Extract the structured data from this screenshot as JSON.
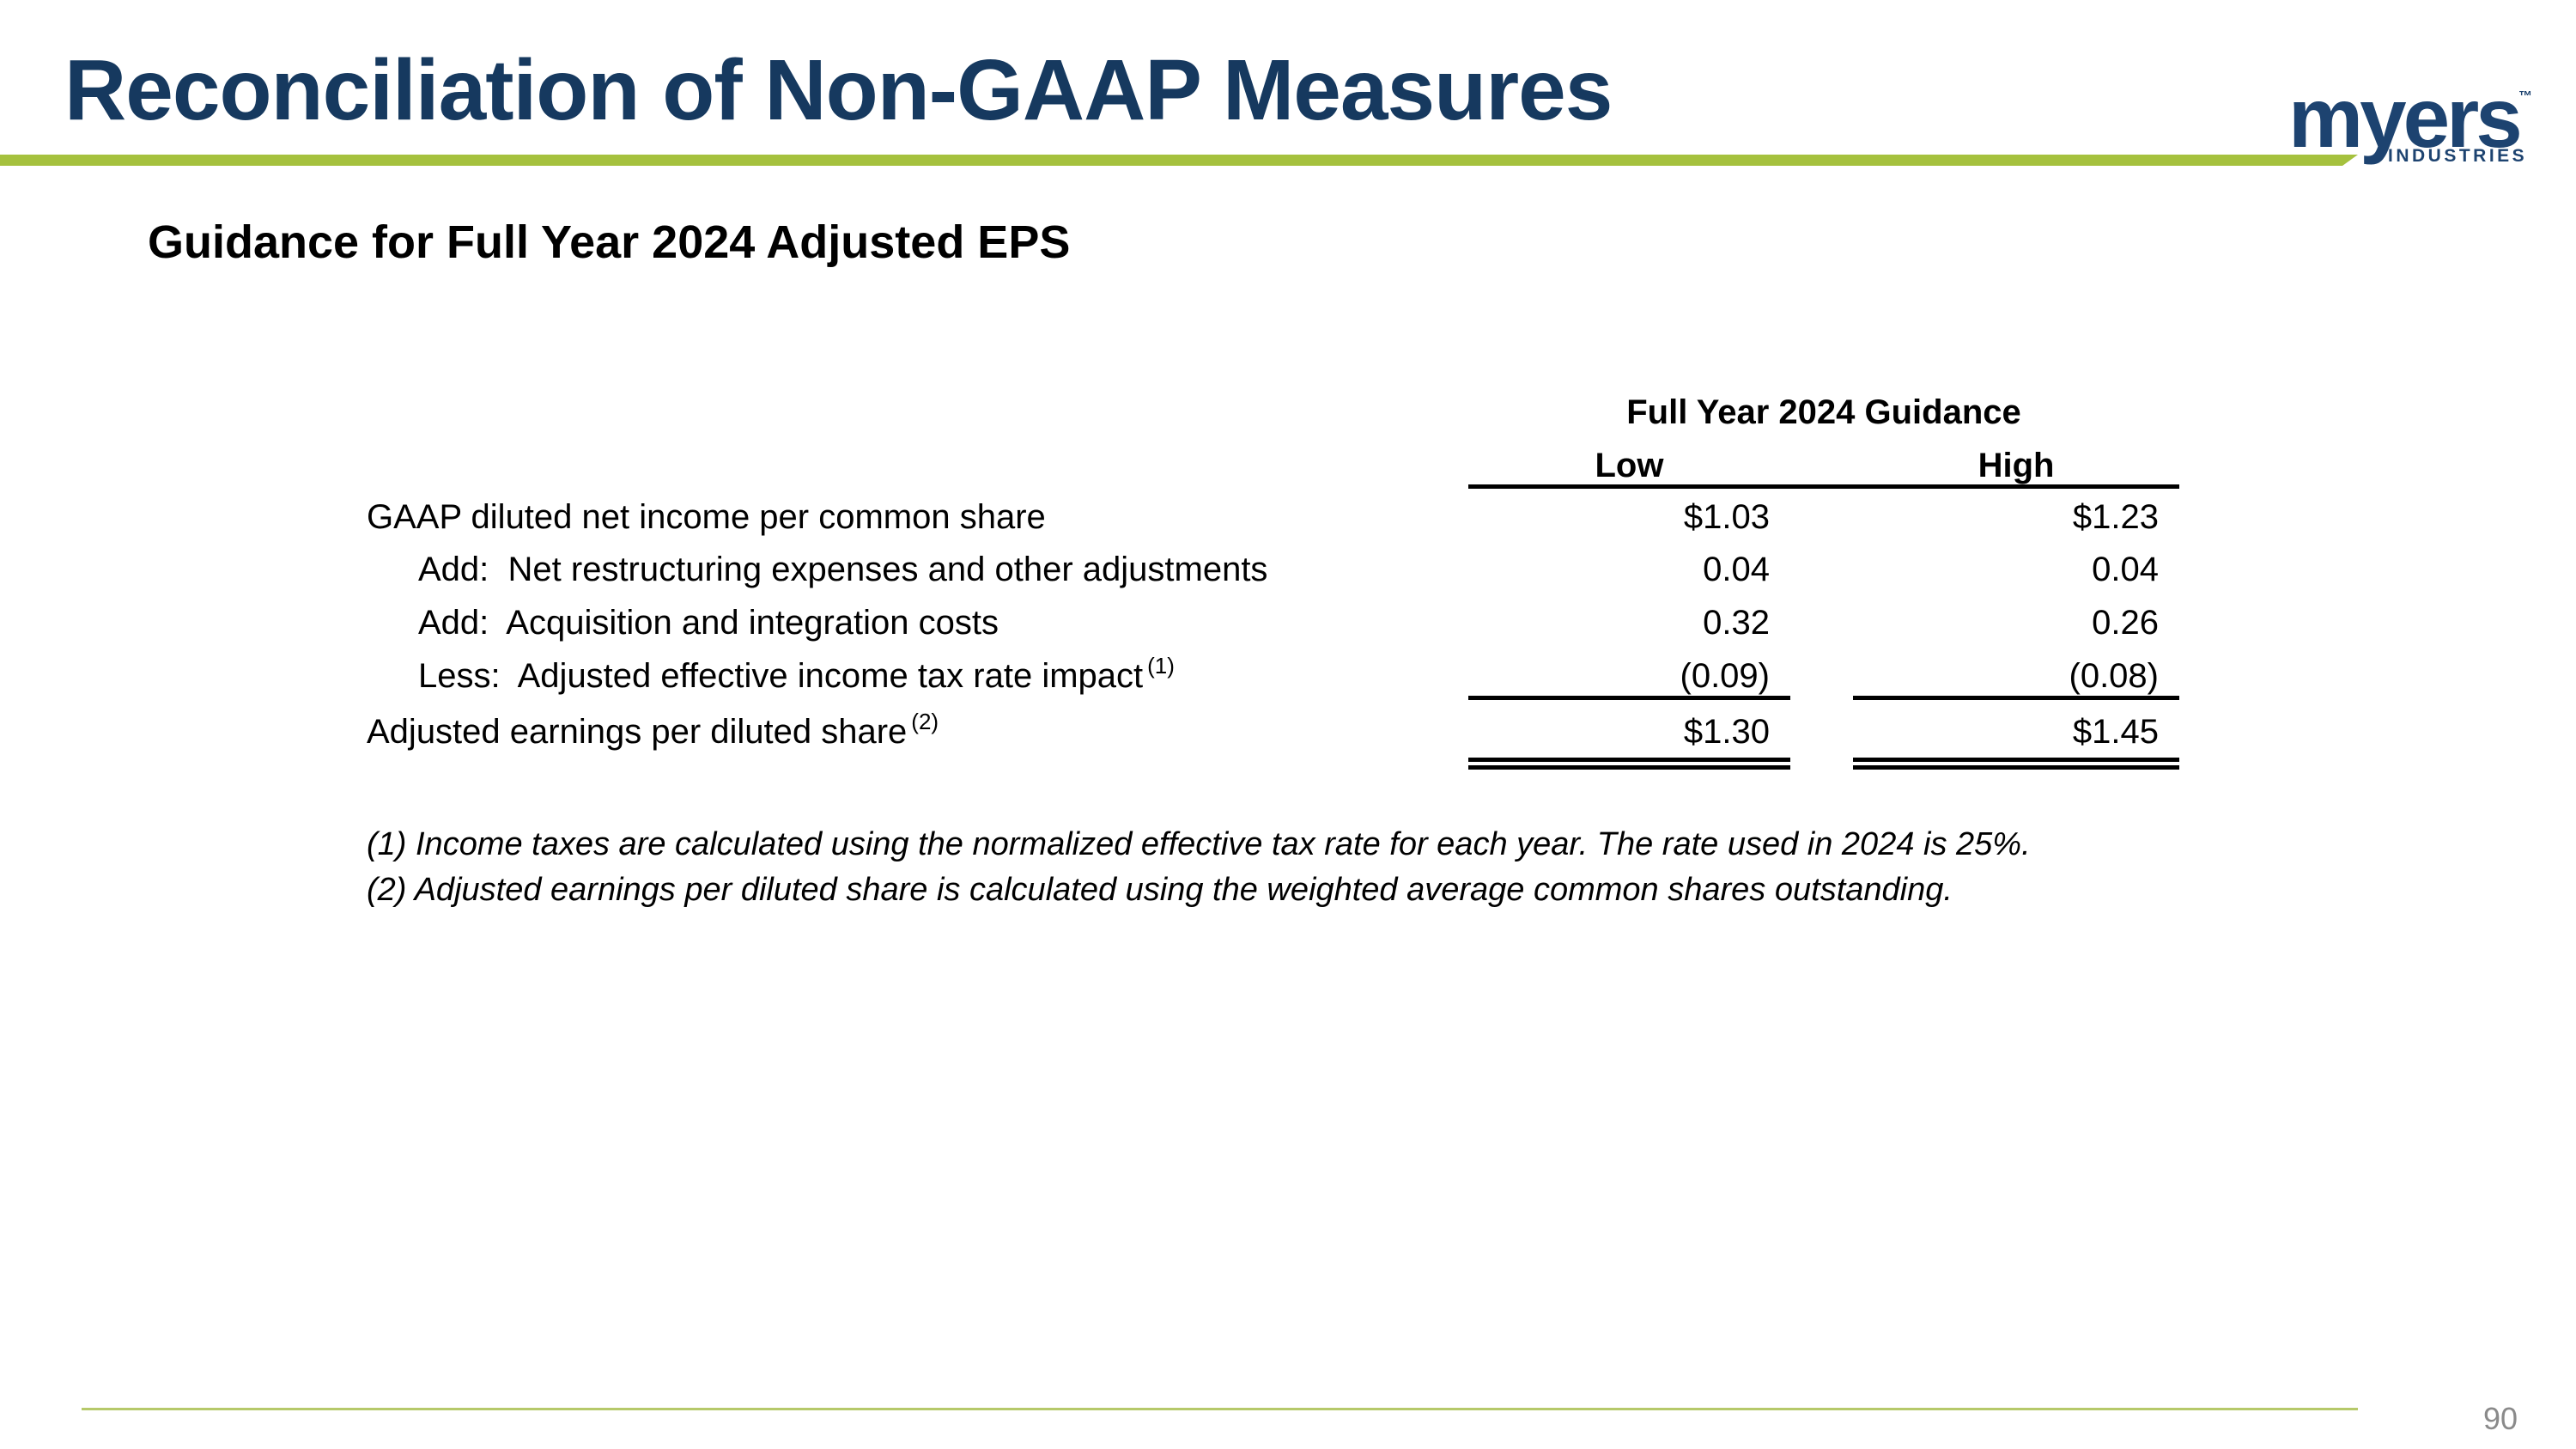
{
  "slide": {
    "title": "Reconciliation of Non-GAAP Measures",
    "subtitle": "Guidance for Full Year 2024 Adjusted EPS",
    "page_number": "90"
  },
  "logo": {
    "brand": "myers",
    "trademark": "™",
    "sub_brand": "INDUSTRIES"
  },
  "colors": {
    "title_navy": "#16395f",
    "logo_navy": "#1d4370",
    "accent_green": "#a5c13e",
    "footer_line_green": "#b6c96a",
    "page_number_gray": "#8a8a8a"
  },
  "table": {
    "header_group": "Full Year 2024 Guidance",
    "columns": [
      "Low",
      "High"
    ],
    "rows": [
      {
        "label": "GAAP diluted net income per common share",
        "sup": "",
        "low": "$1.03",
        "high": "$1.23"
      },
      {
        "label": "Add:  Net restructuring expenses and other adjustments",
        "sup": "",
        "low": "0.04",
        "high": "0.04"
      },
      {
        "label": "Add:  Acquisition and integration costs",
        "sup": "",
        "low": "0.32",
        "high": "0.26"
      },
      {
        "label": "Less:  Adjusted effective income tax rate impact",
        "sup": "(1)",
        "low": "(0.09)",
        "high": "(0.08)"
      },
      {
        "label": "Adjusted earnings per diluted share",
        "sup": "(2)",
        "low": "$1.30",
        "high": "$1.45"
      }
    ]
  },
  "footnotes": [
    "(1) Income taxes are calculated using the normalized effective tax rate for each year. The rate used in 2024 is 25%.",
    "(2) Adjusted earnings per diluted share is calculated using the weighted average common shares outstanding."
  ]
}
